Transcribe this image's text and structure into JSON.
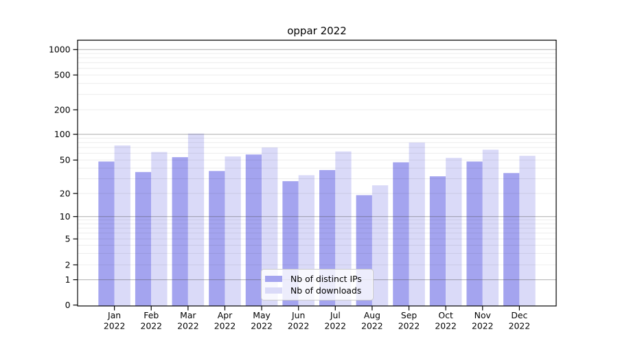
{
  "title": "oppar 2022",
  "chart_data": {
    "type": "bar",
    "title": "oppar 2022",
    "categories": [
      "Jan 2022",
      "Feb 2022",
      "Mar 2022",
      "Apr 2022",
      "May 2022",
      "Jun 2022",
      "Jul 2022",
      "Aug 2022",
      "Sep 2022",
      "Oct 2022",
      "Nov 2022",
      "Dec 2022"
    ],
    "x_tick_months": [
      "Jan",
      "Feb",
      "Mar",
      "Apr",
      "May",
      "Jun",
      "Jul",
      "Aug",
      "Sep",
      "Oct",
      "Nov",
      "Dec"
    ],
    "x_tick_year": "2022",
    "series": [
      {
        "name": "Nb of distinct IPs",
        "color": "#a4a4ef",
        "values": [
          48,
          36,
          54,
          37,
          58,
          28,
          38,
          19,
          47,
          32,
          48,
          35
        ]
      },
      {
        "name": "Nb of downloads",
        "color": "#dadaf8",
        "values": [
          74,
          62,
          102,
          55,
          70,
          33,
          63,
          25,
          80,
          53,
          66,
          56
        ]
      }
    ],
    "y_ticks": [
      0,
      1,
      2,
      5,
      10,
      20,
      50,
      100,
      200,
      500,
      1000
    ],
    "y_scale": "symlog",
    "ylim": [
      0,
      1259
    ],
    "xlabel": "",
    "ylabel": "",
    "grid": true,
    "legend_position": "inside-bottom-center"
  },
  "colors": {
    "distinct_ips": "#a4a4ef",
    "downloads": "#dadaf8",
    "grid_major": "#b3b3b3",
    "grid_minor": "#ececec",
    "axis": "#000000",
    "legend_border": "#cccccc"
  }
}
